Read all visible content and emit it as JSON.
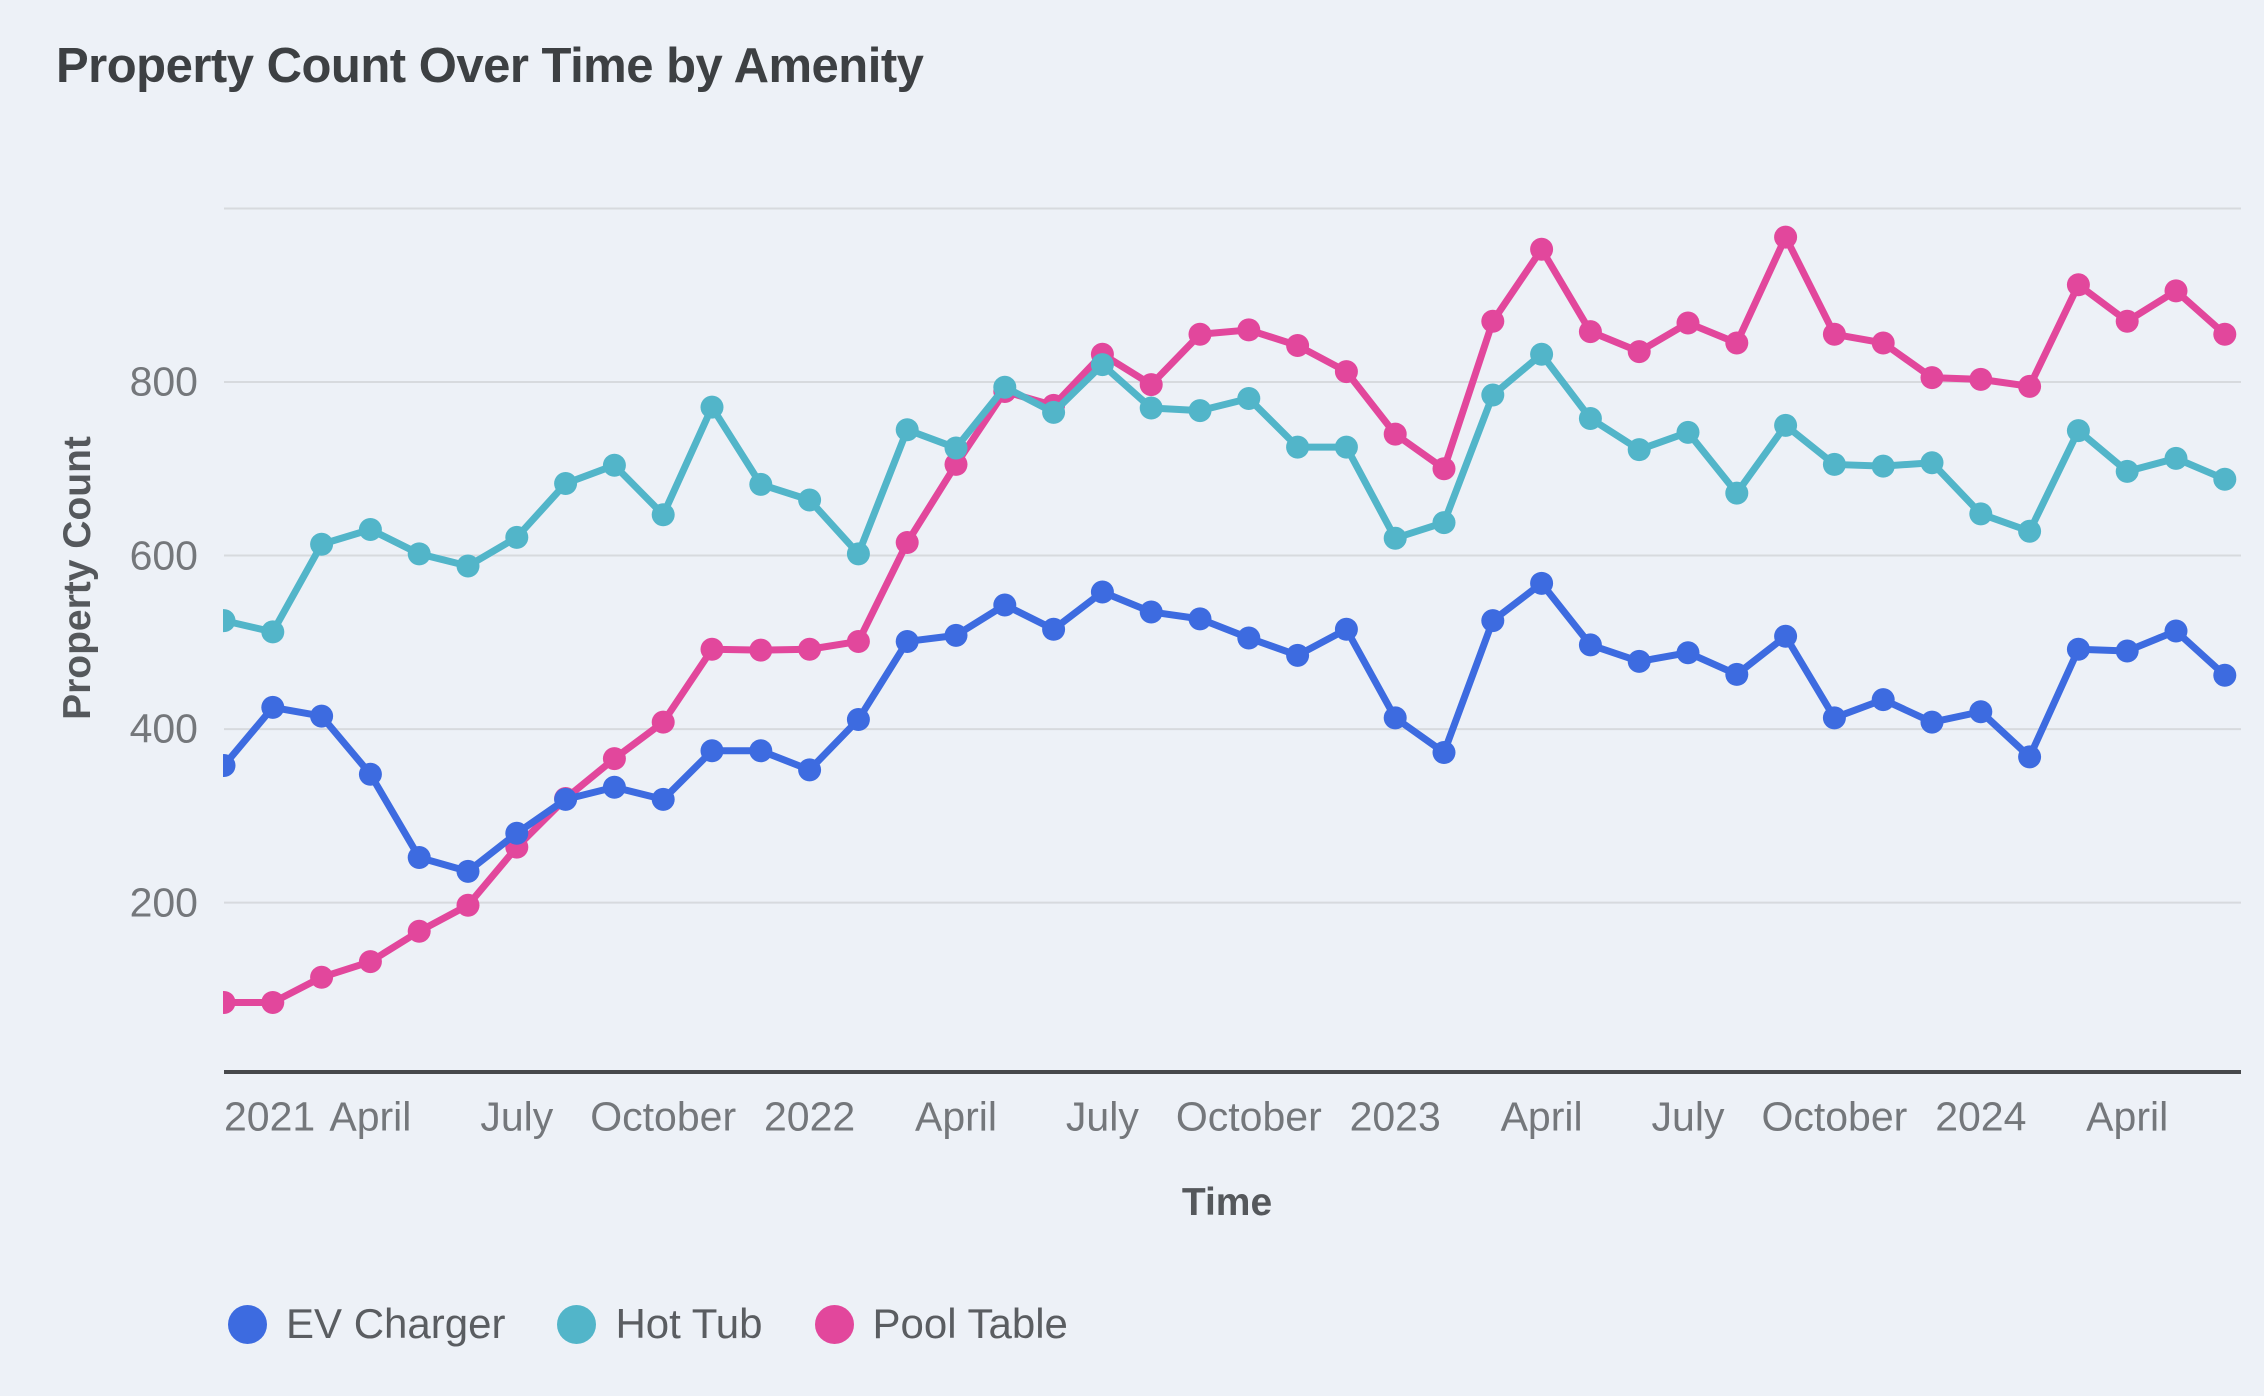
{
  "title": "Property Count Over Time by Amenity",
  "colors": {
    "background": "#edf1f7",
    "gridline": "#d7dade",
    "axis_line": "#47494c",
    "tick_text": "#74777b",
    "axis_title_text": "#55585c",
    "legend_text": "#5a5d61",
    "title_text": "#3d4043"
  },
  "chart_data": {
    "type": "line",
    "title": "Property Count Over Time by Amenity",
    "xlabel": "Time",
    "ylabel": "Property Count",
    "ylim": [
      0,
      1000
    ],
    "grid": true,
    "legend_position": "bottom",
    "y_ticks": [
      200,
      400,
      600,
      800
    ],
    "y_gridlines": [
      200,
      400,
      600,
      800,
      1000
    ],
    "x_tick_labels": [
      "2021",
      "April",
      "July",
      "October",
      "2022",
      "April",
      "July",
      "October",
      "2023",
      "April",
      "July",
      "October",
      "2024",
      "April"
    ],
    "x_tick_indices": [
      0,
      3,
      6,
      9,
      12,
      15,
      18,
      21,
      24,
      27,
      30,
      33,
      36,
      39
    ],
    "x": [
      "2021-01",
      "2021-02",
      "2021-03",
      "2021-04",
      "2021-05",
      "2021-06",
      "2021-07",
      "2021-08",
      "2021-09",
      "2021-10",
      "2021-11",
      "2021-12",
      "2022-01",
      "2022-02",
      "2022-03",
      "2022-04",
      "2022-05",
      "2022-06",
      "2022-07",
      "2022-08",
      "2022-09",
      "2022-10",
      "2022-11",
      "2022-12",
      "2023-01",
      "2023-02",
      "2023-03",
      "2023-04",
      "2023-05",
      "2023-06",
      "2023-07",
      "2023-08",
      "2023-09",
      "2023-10",
      "2023-11",
      "2023-12",
      "2024-01",
      "2024-02",
      "2024-03",
      "2024-04",
      "2024-05",
      "2024-06"
    ],
    "series": [
      {
        "name": "EV Charger",
        "color": "#3d6be0",
        "values": [
          358,
          425,
          415,
          348,
          252,
          236,
          280,
          319,
          333,
          319,
          375,
          375,
          353,
          411,
          501,
          508,
          543,
          515,
          558,
          535,
          527,
          505,
          485,
          515,
          413,
          373,
          525,
          568,
          497,
          478,
          488,
          463,
          507,
          413,
          434,
          408,
          420,
          368,
          492,
          490,
          513,
          462
        ]
      },
      {
        "name": "Hot Tub",
        "color": "#52b5c9",
        "values": [
          525,
          512,
          613,
          630,
          602,
          588,
          621,
          683,
          704,
          647,
          771,
          682,
          664,
          602,
          745,
          724,
          794,
          765,
          820,
          770,
          767,
          781,
          725,
          725,
          620,
          638,
          785,
          832,
          758,
          722,
          742,
          672,
          750,
          705,
          703,
          707,
          648,
          628,
          744,
          697,
          712,
          688
        ]
      },
      {
        "name": "Pool Table",
        "color": "#e2479c",
        "values": [
          85,
          85,
          114,
          132,
          167,
          197,
          264,
          320,
          366,
          408,
          492,
          491,
          492,
          501,
          615,
          705,
          789,
          773,
          832,
          797,
          855,
          860,
          842,
          812,
          740,
          700,
          870,
          953,
          858,
          835,
          868,
          845,
          967,
          855,
          845,
          805,
          803,
          795,
          912,
          870,
          905,
          855
        ]
      }
    ]
  }
}
